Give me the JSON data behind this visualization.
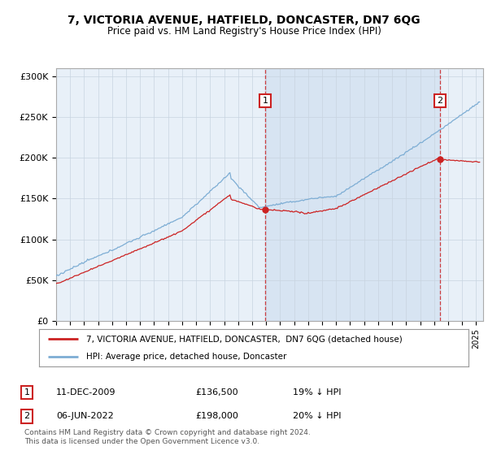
{
  "title": "7, VICTORIA AVENUE, HATFIELD, DONCASTER, DN7 6QG",
  "subtitle": "Price paid vs. HM Land Registry's House Price Index (HPI)",
  "ylabel_ticks": [
    "£0",
    "£50K",
    "£100K",
    "£150K",
    "£200K",
    "£250K",
    "£300K"
  ],
  "ytick_values": [
    0,
    50000,
    100000,
    150000,
    200000,
    250000,
    300000
  ],
  "ylim": [
    0,
    310000
  ],
  "xlim_start": 1995.0,
  "xlim_end": 2025.5,
  "hpi_color": "#7dadd4",
  "price_color": "#cc2222",
  "sale1_x": 2009.94,
  "sale1_y": 136500,
  "sale2_x": 2022.43,
  "sale2_y": 198000,
  "sale1_label": "11-DEC-2009",
  "sale1_price": "£136,500",
  "sale1_note": "19% ↓ HPI",
  "sale2_label": "06-JUN-2022",
  "sale2_price": "£198,000",
  "sale2_note": "20% ↓ HPI",
  "legend_line1": "7, VICTORIA AVENUE, HATFIELD, DONCASTER,  DN7 6QG (detached house)",
  "legend_line2": "HPI: Average price, detached house, Doncaster",
  "footnote": "Contains HM Land Registry data © Crown copyright and database right 2024.\nThis data is licensed under the Open Government Licence v3.0.",
  "plot_bg": "#e8f0f8",
  "grid_color": "#c8d4e0",
  "shade_color": "#d0dff0"
}
